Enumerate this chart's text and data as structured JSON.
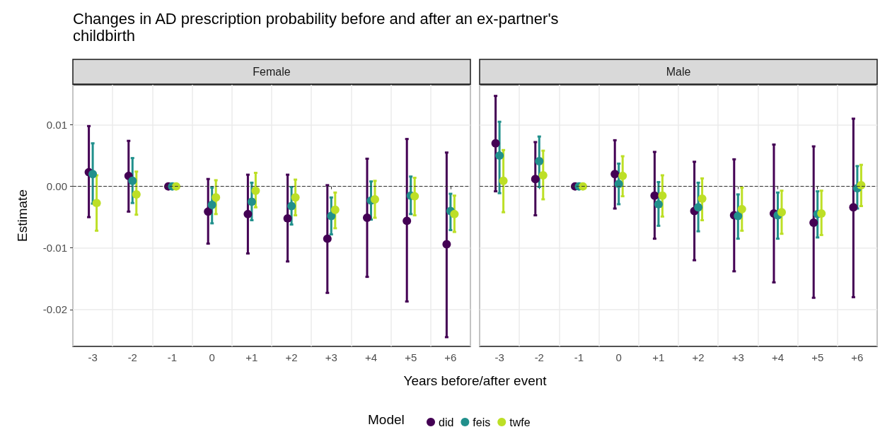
{
  "chart_data": [
    {
      "type": "scatter",
      "title": "Changes in AD prescription probability before and after an ex-partner's childbirth",
      "subtitle": "Female",
      "xlabel": "Years before/after event",
      "ylabel": "Estimate",
      "legend": "bottom",
      "legend_title": "Model",
      "marker": "circle",
      "grid": true,
      "categories": [
        "-3",
        "-2",
        "-1",
        "0",
        "+1",
        "+2",
        "+3",
        "+4",
        "+5",
        "+6"
      ],
      "ylim": [
        -0.026,
        0.0165
      ],
      "yticks": [
        0.01,
        {
          "value": 0,
          "label": "0.00"
        },
        -0.01,
        -0.02
      ],
      "ref_lines": [
        {
          "axis": "y",
          "value": 0,
          "line_style": "dashed",
          "color": "#333333"
        }
      ],
      "series": [
        {
          "name": "did",
          "color": "#440154",
          "values": [
            0.0023,
            0.0017,
            0,
            -0.0041,
            -0.0045,
            -0.0052,
            -0.0085,
            -0.0051,
            -0.0056,
            -0.0094
          ],
          "errors": [
            [
              -0.005,
              0.0098
            ],
            [
              -0.0041,
              0.0074
            ],
            null,
            [
              -0.0093,
              0.0012
            ],
            [
              -0.0109,
              0.0019
            ],
            [
              -0.0122,
              0.0019
            ],
            [
              -0.0173,
              0.0002
            ],
            [
              -0.0147,
              0.0045
            ],
            [
              -0.0187,
              0.0077
            ],
            [
              -0.0245,
              0.0055
            ]
          ]
        },
        {
          "name": "feis",
          "color": "#21908c",
          "values": [
            0.002,
            0.0009,
            0,
            -0.003,
            -0.0025,
            -0.0032,
            -0.0048,
            -0.0023,
            -0.0015,
            -0.004
          ],
          "errors": [
            [
              -0.0028,
              0.007
            ],
            [
              -0.0027,
              0.0046
            ],
            null,
            [
              -0.006,
              -0.0002
            ],
            [
              -0.0055,
              0.0006
            ],
            [
              -0.0062,
              -0.0001
            ],
            [
              -0.0078,
              -0.0018
            ],
            [
              -0.0054,
              0.0008
            ],
            [
              -0.0045,
              0.0016
            ],
            [
              -0.0071,
              -0.0012
            ]
          ]
        },
        {
          "name": "twfe",
          "color": "#bddf26",
          "values": [
            -0.0027,
            -0.0013,
            0,
            -0.0018,
            -0.0007,
            -0.0018,
            -0.0038,
            -0.0021,
            -0.0016,
            -0.0045
          ],
          "errors": [
            [
              -0.0072,
              0.0018
            ],
            [
              -0.0046,
              0.0024
            ],
            null,
            [
              -0.0045,
              0.001
            ],
            [
              -0.0034,
              0.0022
            ],
            [
              -0.0047,
              0.0011
            ],
            [
              -0.0068,
              -0.001
            ],
            [
              -0.0051,
              0.0009
            ],
            [
              -0.0047,
              0.0014
            ],
            [
              -0.0074,
              -0.0015
            ]
          ]
        }
      ]
    },
    {
      "type": "scatter",
      "subtitle": "Male",
      "legend": "bottom",
      "marker": "circle",
      "grid": true,
      "tick_labels": "x",
      "categories": [
        "-3",
        "-2",
        "-1",
        "0",
        "+1",
        "+2",
        "+3",
        "+4",
        "+5",
        "+6"
      ],
      "ylim": [
        -0.026,
        0.0165
      ],
      "yticks": [
        0.01,
        0,
        -0.01,
        -0.02
      ],
      "ref_lines": [
        {
          "axis": "y",
          "value": 0,
          "line_style": "dashed",
          "color": "#333333"
        }
      ],
      "series": [
        {
          "name": "did",
          "color": "#440154",
          "values": [
            0.007,
            0.0012,
            0,
            0.002,
            -0.0015,
            -0.004,
            -0.0047,
            -0.0044,
            -0.0059,
            -0.0034
          ],
          "errors": [
            [
              -0.0008,
              0.0147
            ],
            [
              -0.0047,
              0.0072
            ],
            null,
            [
              -0.0036,
              0.0075
            ],
            [
              -0.0085,
              0.0056
            ],
            [
              -0.012,
              0.004
            ],
            [
              -0.0138,
              0.0044
            ],
            [
              -0.0156,
              0.0068
            ],
            [
              -0.0181,
              0.0065
            ],
            [
              -0.018,
              0.011
            ]
          ]
        },
        {
          "name": "feis",
          "color": "#21908c",
          "values": [
            0.005,
            0.0041,
            0,
            0.0004,
            -0.0029,
            -0.0034,
            -0.0048,
            -0.0047,
            -0.0045,
            -0.0003
          ],
          "errors": [
            [
              -0.0011,
              0.0105
            ],
            [
              -0.0001,
              0.0081
            ],
            null,
            [
              -0.0029,
              0.0037
            ],
            [
              -0.0064,
              0.0007
            ],
            [
              -0.0073,
              0.0006
            ],
            [
              -0.0085,
              -0.0013
            ],
            [
              -0.0085,
              -0.001
            ],
            [
              -0.0083,
              -0.0008
            ],
            [
              -0.0036,
              0.0033
            ]
          ]
        },
        {
          "name": "twfe",
          "color": "#bddf26",
          "values": [
            0.0009,
            0.0018,
            0,
            0.0017,
            -0.0015,
            -0.002,
            -0.0037,
            -0.0042,
            -0.0044,
            0.0002
          ],
          "errors": [
            [
              -0.0042,
              0.0059
            ],
            [
              -0.0021,
              0.0058
            ],
            null,
            [
              -0.0016,
              0.0049
            ],
            [
              -0.0049,
              0.0018
            ],
            [
              -0.0055,
              0.0013
            ],
            [
              -0.0072,
              -0.0002
            ],
            [
              -0.0077,
              -0.0007
            ],
            [
              -0.0079,
              -0.0007
            ],
            [
              -0.0032,
              0.0035
            ]
          ]
        }
      ]
    }
  ]
}
